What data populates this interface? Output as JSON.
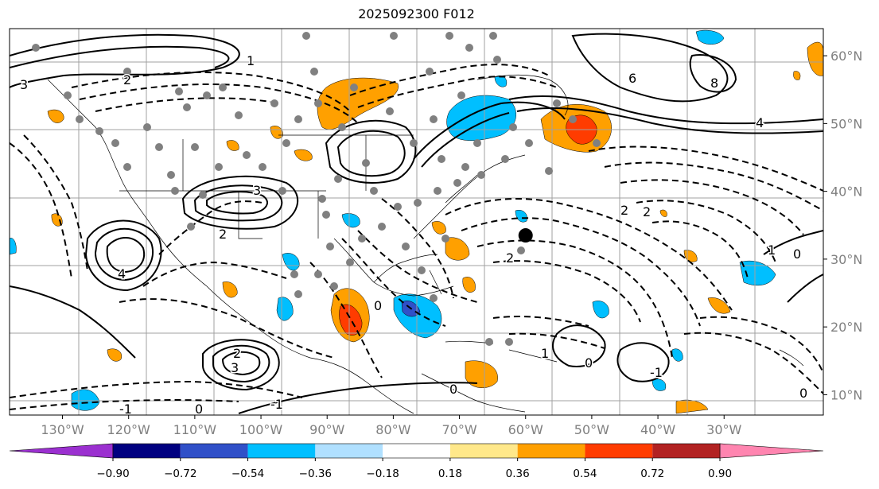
{
  "title": "2025092300 F012",
  "map": {
    "projection": "Plate Carree",
    "lon_range": [
      -138,
      -15
    ],
    "lat_range": [
      7,
      64
    ],
    "grid": true,
    "grid_color": "#a0a0a0",
    "lat_ticks": [
      {
        "value": 60,
        "label": "60°N"
      },
      {
        "value": 50,
        "label": "50°N"
      },
      {
        "value": 40,
        "label": "40°N"
      },
      {
        "value": 30,
        "label": "30°N"
      },
      {
        "value": 20,
        "label": "20°N"
      },
      {
        "value": 10,
        "label": "10°N"
      }
    ],
    "lon_ticks": [
      {
        "value": -130,
        "label": "130°W"
      },
      {
        "value": -120,
        "label": "120°W"
      },
      {
        "value": -110,
        "label": "110°W"
      },
      {
        "value": -100,
        "label": "100°W"
      },
      {
        "value": -90,
        "label": "90°W"
      },
      {
        "value": -80,
        "label": "80°W"
      },
      {
        "value": -70,
        "label": "70°W"
      },
      {
        "value": -60,
        "label": "60°W"
      },
      {
        "value": -50,
        "label": "50°W"
      },
      {
        "value": -40,
        "label": "40°W"
      },
      {
        "value": -30,
        "label": "30°W"
      }
    ],
    "contour_labels": [
      "6",
      "8",
      "4",
      "2",
      "1",
      "3",
      "3",
      "4",
      "2",
      "3",
      "2",
      "0",
      "-1",
      "-1",
      "0",
      "1",
      "0",
      "2",
      "2",
      "2",
      "0",
      "0",
      "-1",
      "0",
      "1"
    ]
  },
  "colorbar": {
    "ticks": [
      "−0.90",
      "−0.72",
      "−0.54",
      "−0.36",
      "−0.18",
      "0.18",
      "0.36",
      "0.54",
      "0.72",
      "0.90"
    ],
    "colors": [
      "#9b30d0",
      "#000080",
      "#3050c8",
      "#00bfff",
      "#b0e0ff",
      "#ffffff",
      "#ffe88a",
      "#ffa000",
      "#ff3c00",
      "#b22222",
      "#ff85b0"
    ]
  },
  "marker": {
    "name": "black-dot",
    "lon": -60,
    "lat": 33.5,
    "color": "#000000"
  }
}
